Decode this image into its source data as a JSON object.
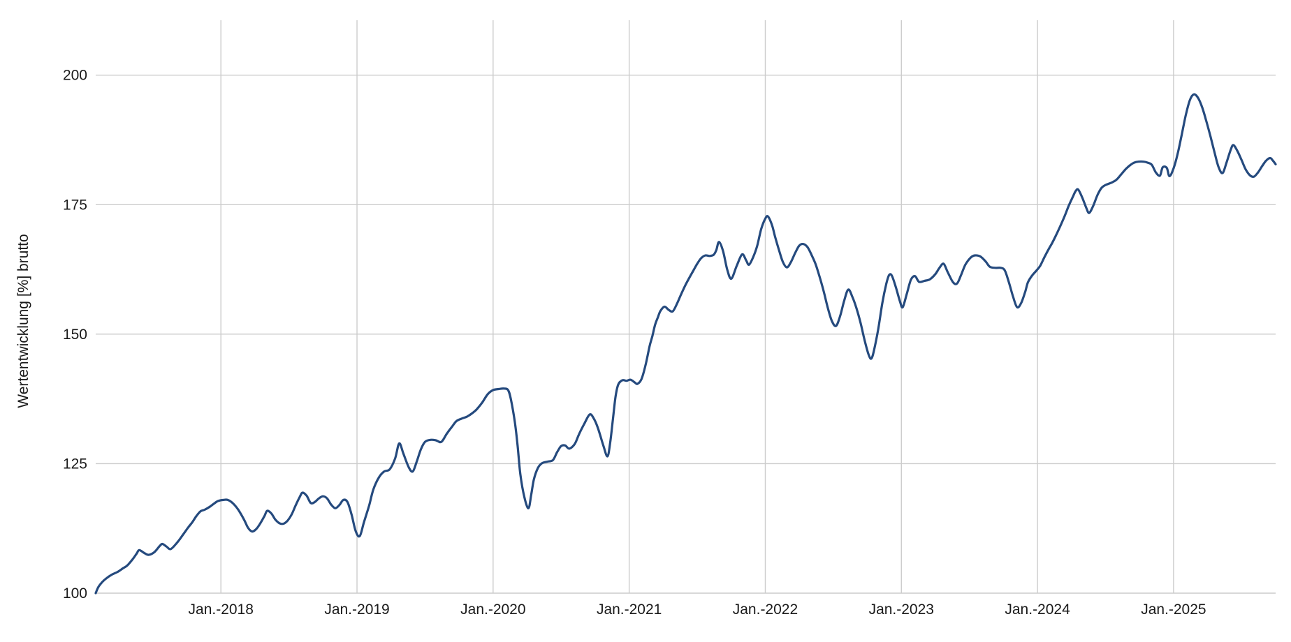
{
  "chart_data": {
    "type": "line",
    "title": "",
    "xlabel": "",
    "ylabel": "Wertentwicklung [%] brutto",
    "grid": true,
    "legend": "none",
    "background": "#ffffff",
    "grid_color": "#cccccc",
    "axis_text_color": "#1a1a1a",
    "xlim": [
      2017.08,
      2025.75
    ],
    "ylim": [
      100,
      210.6
    ],
    "y_ticks": [
      100,
      125,
      150,
      175,
      200
    ],
    "x_ticks": [
      {
        "pos": 2018,
        "label": "Jan.-2018"
      },
      {
        "pos": 2019,
        "label": "Jan.-2019"
      },
      {
        "pos": 2020,
        "label": "Jan.-2020"
      },
      {
        "pos": 2021,
        "label": "Jan.-2021"
      },
      {
        "pos": 2022,
        "label": "Jan.-2022"
      },
      {
        "pos": 2023,
        "label": "Jan.-2023"
      },
      {
        "pos": 2024,
        "label": "Jan.-2024"
      },
      {
        "pos": 2025,
        "label": "Jan.-2025"
      }
    ],
    "series": [
      {
        "name": "Wertentwicklung",
        "color": "#254a7e",
        "width": 3.2,
        "points": [
          [
            2017.08,
            100.0
          ],
          [
            2017.1,
            101.2
          ],
          [
            2017.13,
            102.2
          ],
          [
            2017.16,
            102.9
          ],
          [
            2017.2,
            103.6
          ],
          [
            2017.24,
            104.1
          ],
          [
            2017.28,
            104.8
          ],
          [
            2017.31,
            105.3
          ],
          [
            2017.35,
            106.5
          ],
          [
            2017.38,
            107.6
          ],
          [
            2017.4,
            108.3
          ],
          [
            2017.44,
            107.7
          ],
          [
            2017.47,
            107.4
          ],
          [
            2017.51,
            107.9
          ],
          [
            2017.55,
            109.1
          ],
          [
            2017.57,
            109.5
          ],
          [
            2017.6,
            109.0
          ],
          [
            2017.63,
            108.5
          ],
          [
            2017.67,
            109.5
          ],
          [
            2017.7,
            110.5
          ],
          [
            2017.73,
            111.6
          ],
          [
            2017.76,
            112.7
          ],
          [
            2017.79,
            113.7
          ],
          [
            2017.82,
            114.9
          ],
          [
            2017.85,
            115.8
          ],
          [
            2017.88,
            116.1
          ],
          [
            2017.92,
            116.7
          ],
          [
            2017.95,
            117.3
          ],
          [
            2017.98,
            117.8
          ],
          [
            2018.02,
            118.0
          ],
          [
            2018.05,
            118.0
          ],
          [
            2018.09,
            117.3
          ],
          [
            2018.13,
            116.0
          ],
          [
            2018.17,
            114.2
          ],
          [
            2018.2,
            112.6
          ],
          [
            2018.23,
            111.9
          ],
          [
            2018.26,
            112.4
          ],
          [
            2018.29,
            113.5
          ],
          [
            2018.32,
            114.9
          ],
          [
            2018.34,
            115.9
          ],
          [
            2018.37,
            115.4
          ],
          [
            2018.4,
            114.2
          ],
          [
            2018.43,
            113.5
          ],
          [
            2018.46,
            113.4
          ],
          [
            2018.49,
            114.0
          ],
          [
            2018.52,
            115.2
          ],
          [
            2018.55,
            117.0
          ],
          [
            2018.58,
            118.6
          ],
          [
            2018.6,
            119.4
          ],
          [
            2018.63,
            118.8
          ],
          [
            2018.66,
            117.4
          ],
          [
            2018.69,
            117.6
          ],
          [
            2018.72,
            118.3
          ],
          [
            2018.75,
            118.7
          ],
          [
            2018.78,
            118.3
          ],
          [
            2018.81,
            117.1
          ],
          [
            2018.84,
            116.4
          ],
          [
            2018.87,
            117.0
          ],
          [
            2018.9,
            118.0
          ],
          [
            2018.93,
            117.6
          ],
          [
            2018.96,
            115.2
          ],
          [
            2018.99,
            112.0
          ],
          [
            2019.02,
            111.0
          ],
          [
            2019.05,
            113.6
          ],
          [
            2019.09,
            117.0
          ],
          [
            2019.12,
            120.0
          ],
          [
            2019.16,
            122.3
          ],
          [
            2019.2,
            123.5
          ],
          [
            2019.24,
            123.9
          ],
          [
            2019.28,
            126.0
          ],
          [
            2019.31,
            128.9
          ],
          [
            2019.34,
            127.0
          ],
          [
            2019.38,
            124.3
          ],
          [
            2019.41,
            123.5
          ],
          [
            2019.44,
            125.5
          ],
          [
            2019.47,
            127.8
          ],
          [
            2019.5,
            129.2
          ],
          [
            2019.54,
            129.6
          ],
          [
            2019.58,
            129.5
          ],
          [
            2019.62,
            129.2
          ],
          [
            2019.66,
            130.8
          ],
          [
            2019.7,
            132.2
          ],
          [
            2019.73,
            133.2
          ],
          [
            2019.77,
            133.7
          ],
          [
            2019.81,
            134.1
          ],
          [
            2019.85,
            134.8
          ],
          [
            2019.88,
            135.5
          ],
          [
            2019.92,
            136.8
          ],
          [
            2019.96,
            138.4
          ],
          [
            2020.0,
            139.2
          ],
          [
            2020.04,
            139.4
          ],
          [
            2020.08,
            139.5
          ],
          [
            2020.11,
            139.2
          ],
          [
            2020.13,
            137.5
          ],
          [
            2020.16,
            133.0
          ],
          [
            2020.18,
            128.5
          ],
          [
            2020.2,
            123.0
          ],
          [
            2020.23,
            118.5
          ],
          [
            2020.26,
            116.4
          ],
          [
            2020.28,
            119.0
          ],
          [
            2020.3,
            122.0
          ],
          [
            2020.33,
            124.2
          ],
          [
            2020.36,
            125.1
          ],
          [
            2020.4,
            125.4
          ],
          [
            2020.44,
            125.7
          ],
          [
            2020.47,
            127.2
          ],
          [
            2020.5,
            128.4
          ],
          [
            2020.53,
            128.5
          ],
          [
            2020.56,
            127.9
          ],
          [
            2020.6,
            128.8
          ],
          [
            2020.63,
            130.6
          ],
          [
            2020.67,
            132.7
          ],
          [
            2020.71,
            134.5
          ],
          [
            2020.74,
            133.7
          ],
          [
            2020.77,
            131.9
          ],
          [
            2020.81,
            128.5
          ],
          [
            2020.84,
            126.4
          ],
          [
            2020.86,
            129.0
          ],
          [
            2020.88,
            133.5
          ],
          [
            2020.9,
            138.0
          ],
          [
            2020.92,
            140.3
          ],
          [
            2020.95,
            141.1
          ],
          [
            2020.98,
            141.0
          ],
          [
            2021.01,
            141.2
          ],
          [
            2021.04,
            140.7
          ],
          [
            2021.06,
            140.4
          ],
          [
            2021.09,
            141.3
          ],
          [
            2021.12,
            144.0
          ],
          [
            2021.15,
            147.7
          ],
          [
            2021.17,
            149.6
          ],
          [
            2021.19,
            151.8
          ],
          [
            2021.21,
            153.2
          ],
          [
            2021.23,
            154.5
          ],
          [
            2021.26,
            155.3
          ],
          [
            2021.29,
            154.7
          ],
          [
            2021.32,
            154.4
          ],
          [
            2021.35,
            155.8
          ],
          [
            2021.38,
            157.6
          ],
          [
            2021.41,
            159.3
          ],
          [
            2021.44,
            160.8
          ],
          [
            2021.47,
            162.2
          ],
          [
            2021.5,
            163.6
          ],
          [
            2021.53,
            164.7
          ],
          [
            2021.56,
            165.2
          ],
          [
            2021.59,
            165.1
          ],
          [
            2021.62,
            165.3
          ],
          [
            2021.64,
            166.2
          ],
          [
            2021.66,
            167.8
          ],
          [
            2021.69,
            166.0
          ],
          [
            2021.72,
            162.5
          ],
          [
            2021.75,
            160.7
          ],
          [
            2021.79,
            163.2
          ],
          [
            2021.83,
            165.4
          ],
          [
            2021.86,
            164.2
          ],
          [
            2021.88,
            163.4
          ],
          [
            2021.91,
            164.8
          ],
          [
            2021.94,
            167.0
          ],
          [
            2021.97,
            170.3
          ],
          [
            2022.0,
            172.3
          ],
          [
            2022.02,
            172.7
          ],
          [
            2022.05,
            171.0
          ],
          [
            2022.07,
            169.0
          ],
          [
            2022.1,
            166.3
          ],
          [
            2022.13,
            163.9
          ],
          [
            2022.16,
            162.9
          ],
          [
            2022.19,
            164.0
          ],
          [
            2022.22,
            165.7
          ],
          [
            2022.25,
            167.1
          ],
          [
            2022.28,
            167.4
          ],
          [
            2022.31,
            166.8
          ],
          [
            2022.34,
            165.3
          ],
          [
            2022.37,
            163.5
          ],
          [
            2022.4,
            161.0
          ],
          [
            2022.43,
            158.2
          ],
          [
            2022.46,
            155.0
          ],
          [
            2022.49,
            152.5
          ],
          [
            2022.52,
            151.6
          ],
          [
            2022.55,
            153.5
          ],
          [
            2022.58,
            156.5
          ],
          [
            2022.61,
            158.6
          ],
          [
            2022.64,
            157.2
          ],
          [
            2022.67,
            155.0
          ],
          [
            2022.7,
            152.2
          ],
          [
            2022.73,
            148.8
          ],
          [
            2022.76,
            146.0
          ],
          [
            2022.78,
            145.3
          ],
          [
            2022.8,
            147.0
          ],
          [
            2022.83,
            151.0
          ],
          [
            2022.86,
            156.0
          ],
          [
            2022.89,
            159.8
          ],
          [
            2022.91,
            161.4
          ],
          [
            2022.93,
            161.3
          ],
          [
            2022.96,
            159.0
          ],
          [
            2022.99,
            156.3
          ],
          [
            2023.01,
            155.2
          ],
          [
            2023.04,
            157.8
          ],
          [
            2023.07,
            160.5
          ],
          [
            2023.1,
            161.2
          ],
          [
            2023.13,
            160.1
          ],
          [
            2023.17,
            160.3
          ],
          [
            2023.21,
            160.6
          ],
          [
            2023.25,
            161.6
          ],
          [
            2023.28,
            162.8
          ],
          [
            2023.31,
            163.6
          ],
          [
            2023.34,
            162.0
          ],
          [
            2023.38,
            160.0
          ],
          [
            2023.41,
            159.8
          ],
          [
            2023.44,
            161.5
          ],
          [
            2023.47,
            163.4
          ],
          [
            2023.51,
            164.8
          ],
          [
            2023.54,
            165.2
          ],
          [
            2023.58,
            165.0
          ],
          [
            2023.62,
            164.0
          ],
          [
            2023.65,
            163.0
          ],
          [
            2023.69,
            162.8
          ],
          [
            2023.73,
            162.8
          ],
          [
            2023.76,
            162.3
          ],
          [
            2023.79,
            160.0
          ],
          [
            2023.82,
            157.3
          ],
          [
            2023.85,
            155.2
          ],
          [
            2023.88,
            156.0
          ],
          [
            2023.91,
            158.2
          ],
          [
            2023.93,
            160.0
          ],
          [
            2023.96,
            161.3
          ],
          [
            2023.99,
            162.2
          ],
          [
            2024.02,
            163.2
          ],
          [
            2024.05,
            164.8
          ],
          [
            2024.08,
            166.3
          ],
          [
            2024.11,
            167.7
          ],
          [
            2024.14,
            169.3
          ],
          [
            2024.17,
            171.0
          ],
          [
            2024.2,
            172.8
          ],
          [
            2024.23,
            174.8
          ],
          [
            2024.26,
            176.5
          ],
          [
            2024.28,
            177.6
          ],
          [
            2024.3,
            177.9
          ],
          [
            2024.33,
            176.3
          ],
          [
            2024.36,
            174.3
          ],
          [
            2024.38,
            173.4
          ],
          [
            2024.41,
            174.8
          ],
          [
            2024.44,
            176.8
          ],
          [
            2024.47,
            178.2
          ],
          [
            2024.5,
            178.8
          ],
          [
            2024.54,
            179.2
          ],
          [
            2024.58,
            179.8
          ],
          [
            2024.62,
            181.0
          ],
          [
            2024.65,
            181.9
          ],
          [
            2024.68,
            182.6
          ],
          [
            2024.71,
            183.1
          ],
          [
            2024.74,
            183.3
          ],
          [
            2024.78,
            183.3
          ],
          [
            2024.81,
            183.1
          ],
          [
            2024.84,
            182.7
          ],
          [
            2024.87,
            181.2
          ],
          [
            2024.9,
            180.6
          ],
          [
            2024.92,
            182.2
          ],
          [
            2024.95,
            182.1
          ],
          [
            2024.97,
            180.5
          ],
          [
            2025.0,
            182.0
          ],
          [
            2025.03,
            184.8
          ],
          [
            2025.06,
            188.5
          ],
          [
            2025.09,
            192.3
          ],
          [
            2025.12,
            195.2
          ],
          [
            2025.15,
            196.3
          ],
          [
            2025.18,
            195.6
          ],
          [
            2025.21,
            193.8
          ],
          [
            2025.24,
            191.2
          ],
          [
            2025.27,
            188.3
          ],
          [
            2025.3,
            185.2
          ],
          [
            2025.33,
            182.3
          ],
          [
            2025.36,
            181.1
          ],
          [
            2025.39,
            183.2
          ],
          [
            2025.42,
            185.6
          ],
          [
            2025.44,
            186.5
          ],
          [
            2025.47,
            185.3
          ],
          [
            2025.5,
            183.6
          ],
          [
            2025.53,
            181.8
          ],
          [
            2025.56,
            180.7
          ],
          [
            2025.59,
            180.4
          ],
          [
            2025.62,
            181.2
          ],
          [
            2025.65,
            182.4
          ],
          [
            2025.68,
            183.5
          ],
          [
            2025.71,
            184.0
          ],
          [
            2025.73,
            183.5
          ],
          [
            2025.75,
            182.8
          ]
        ]
      }
    ]
  }
}
